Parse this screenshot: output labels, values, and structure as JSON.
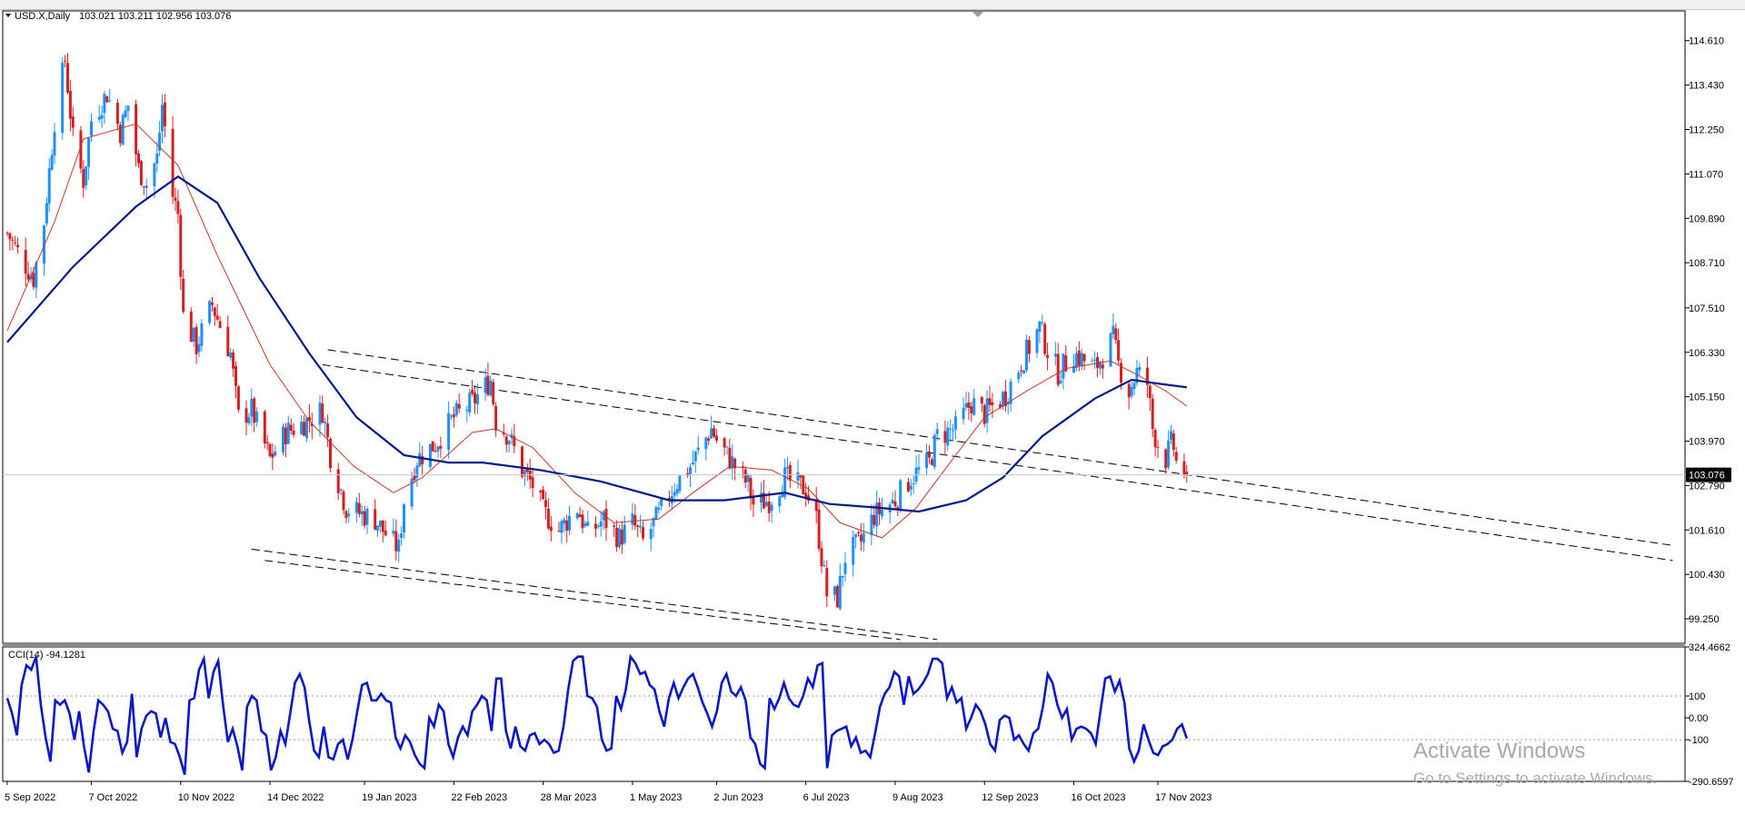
{
  "header": {
    "symbol_label": "USD.X,Daily",
    "ohlc": "103.021 103.211 102.956 103.076"
  },
  "watermark": {
    "title": "Activate Windows",
    "subtitle": "Go to Settings to activate Windows."
  },
  "colors": {
    "up_candle": "#1e90ff",
    "down_candle": "#d42020",
    "ma_fast": "#c0392b",
    "ma_slow": "#001a8c",
    "cci_line": "#0a18c8",
    "channel": "#000000",
    "price_tag_bg": "#000000"
  },
  "chart_data": [
    {
      "type": "candlestick",
      "panel": "price",
      "title": "USD.X,Daily",
      "current_price": 103.076,
      "current_price_label": "103.076",
      "ylim": [
        98.6,
        115.4
      ],
      "y_ticks": [
        "114.610",
        "113.430",
        "112.250",
        "111.070",
        "109.890",
        "108.710",
        "107.510",
        "106.330",
        "105.150",
        "103.970",
        "102.790",
        "101.610",
        "100.430",
        "99.250"
      ],
      "x_ticks": [
        {
          "label": "5 Sep 2022",
          "date": "2022-09-05"
        },
        {
          "label": "7 Oct 2022",
          "date": "2022-10-07"
        },
        {
          "label": "10 Nov 2022",
          "date": "2022-11-10"
        },
        {
          "label": "14 Dec 2022",
          "date": "2022-12-14"
        },
        {
          "label": "19 Jan 2023",
          "date": "2023-01-19"
        },
        {
          "label": "22 Feb 2023",
          "date": "2023-02-22"
        },
        {
          "label": "28 Mar 2023",
          "date": "2023-03-28"
        },
        {
          "label": "1 May 2023",
          "date": "2023-05-01"
        },
        {
          "label": "2 Jun 2023",
          "date": "2023-06-02"
        },
        {
          "label": "6 Jul 2023",
          "date": "2023-07-06"
        },
        {
          "label": "9 Aug 2023",
          "date": "2023-08-09"
        },
        {
          "label": "12 Sep 2023",
          "date": "2023-09-12"
        },
        {
          "label": "16 Oct 2023",
          "date": "2023-10-16"
        },
        {
          "label": "17 Nov 2023",
          "date": "2023-11-17"
        }
      ],
      "close_path": [
        [
          "2022-09-05",
          109.5
        ],
        [
          "2022-09-09",
          109.0
        ],
        [
          "2022-09-15",
          108.3
        ],
        [
          "2022-09-19",
          109.8
        ],
        [
          "2022-09-23",
          112.5
        ],
        [
          "2022-09-27",
          114.1
        ],
        [
          "2022-09-30",
          112.0
        ],
        [
          "2022-10-04",
          110.9
        ],
        [
          "2022-10-07",
          112.5
        ],
        [
          "2022-10-13",
          113.2
        ],
        [
          "2022-10-18",
          112.2
        ],
        [
          "2022-10-21",
          112.9
        ],
        [
          "2022-10-25",
          111.2
        ],
        [
          "2022-10-28",
          110.8
        ],
        [
          "2022-11-01",
          111.5
        ],
        [
          "2022-11-03",
          112.9
        ],
        [
          "2022-11-07",
          110.5
        ],
        [
          "2022-11-09",
          110.0
        ],
        [
          "2022-11-11",
          107.3
        ],
        [
          "2022-11-16",
          106.5
        ],
        [
          "2022-11-22",
          107.6
        ],
        [
          "2022-11-29",
          106.3
        ],
        [
          "2022-12-02",
          104.6
        ],
        [
          "2022-12-07",
          104.8
        ],
        [
          "2022-12-14",
          103.5
        ],
        [
          "2022-12-20",
          104.2
        ],
        [
          "2022-12-28",
          104.5
        ],
        [
          "2023-01-03",
          104.8
        ],
        [
          "2023-01-06",
          103.6
        ],
        [
          "2023-01-12",
          102.2
        ],
        [
          "2023-01-19",
          102.0
        ],
        [
          "2023-01-23",
          101.9
        ],
        [
          "2023-01-26",
          101.6
        ],
        [
          "2023-02-01",
          101.1
        ],
        [
          "2023-02-03",
          102.4
        ],
        [
          "2023-02-08",
          103.5
        ],
        [
          "2023-02-15",
          103.9
        ],
        [
          "2023-02-22",
          104.6
        ],
        [
          "2023-03-01",
          105.0
        ],
        [
          "2023-03-08",
          105.6
        ],
        [
          "2023-03-10",
          104.5
        ],
        [
          "2023-03-15",
          104.1
        ],
        [
          "2023-03-20",
          103.2
        ],
        [
          "2023-03-24",
          102.8
        ],
        [
          "2023-03-28",
          102.1
        ],
        [
          "2023-04-03",
          101.6
        ],
        [
          "2023-04-10",
          102.2
        ],
        [
          "2023-04-14",
          101.5
        ],
        [
          "2023-04-20",
          101.9
        ],
        [
          "2023-04-26",
          101.4
        ],
        [
          "2023-05-01",
          101.8
        ],
        [
          "2023-05-05",
          101.3
        ],
        [
          "2023-05-11",
          102.0
        ],
        [
          "2023-05-17",
          102.8
        ],
        [
          "2023-05-23",
          103.3
        ],
        [
          "2023-05-31",
          104.3
        ],
        [
          "2023-06-02",
          104.0
        ],
        [
          "2023-06-08",
          103.4
        ],
        [
          "2023-06-14",
          102.8
        ],
        [
          "2023-06-16",
          102.3
        ],
        [
          "2023-06-22",
          102.4
        ],
        [
          "2023-06-28",
          103.0
        ],
        [
          "2023-06-30",
          102.9
        ],
        [
          "2023-07-06",
          102.7
        ],
        [
          "2023-07-10",
          101.9
        ],
        [
          "2023-07-14",
          99.9
        ],
        [
          "2023-07-18",
          99.8
        ],
        [
          "2023-07-21",
          100.9
        ],
        [
          "2023-07-27",
          101.3
        ],
        [
          "2023-08-01",
          102.0
        ],
        [
          "2023-08-09",
          102.4
        ],
        [
          "2023-08-15",
          103.0
        ],
        [
          "2023-08-22",
          103.4
        ],
        [
          "2023-08-25",
          104.1
        ],
        [
          "2023-09-01",
          104.3
        ],
        [
          "2023-09-07",
          105.0
        ],
        [
          "2023-09-12",
          104.7
        ],
        [
          "2023-09-20",
          105.2
        ],
        [
          "2023-09-27",
          106.2
        ],
        [
          "2023-10-03",
          107.0
        ],
        [
          "2023-10-06",
          106.4
        ],
        [
          "2023-10-10",
          105.8
        ],
        [
          "2023-10-16",
          106.3
        ],
        [
          "2023-10-20",
          106.1
        ],
        [
          "2023-10-24",
          105.9
        ],
        [
          "2023-10-31",
          106.7
        ],
        [
          "2023-11-02",
          106.0
        ],
        [
          "2023-11-06",
          105.3
        ],
        [
          "2023-11-09",
          105.8
        ],
        [
          "2023-11-13",
          105.5
        ],
        [
          "2023-11-15",
          104.3
        ],
        [
          "2023-11-17",
          103.9
        ],
        [
          "2023-11-20",
          103.5
        ],
        [
          "2023-11-22",
          103.9
        ],
        [
          "2023-11-23",
          103.8
        ],
        [
          "2023-11-24",
          103.4
        ],
        [
          "2023-11-27",
          103.2
        ],
        [
          "2023-11-28",
          103.076
        ]
      ],
      "ma_fast": [
        [
          "2022-09-05",
          106.9
        ],
        [
          "2022-09-23",
          109.8
        ],
        [
          "2022-10-04",
          112.0
        ],
        [
          "2022-10-24",
          112.4
        ],
        [
          "2022-11-09",
          111.3
        ],
        [
          "2022-11-24",
          108.9
        ],
        [
          "2022-12-14",
          106.0
        ],
        [
          "2022-12-29",
          104.5
        ],
        [
          "2023-01-15",
          103.3
        ],
        [
          "2023-01-30",
          102.6
        ],
        [
          "2023-02-10",
          103.0
        ],
        [
          "2023-03-01",
          104.2
        ],
        [
          "2023-03-10",
          104.3
        ],
        [
          "2023-03-24",
          103.8
        ],
        [
          "2023-04-09",
          102.6
        ],
        [
          "2023-04-24",
          101.8
        ],
        [
          "2023-05-11",
          101.9
        ],
        [
          "2023-05-24",
          102.6
        ],
        [
          "2023-06-07",
          103.3
        ],
        [
          "2023-06-23",
          103.2
        ],
        [
          "2023-07-07",
          102.7
        ],
        [
          "2023-07-19",
          101.8
        ],
        [
          "2023-08-04",
          101.4
        ],
        [
          "2023-08-17",
          102.2
        ],
        [
          "2023-08-31",
          103.5
        ],
        [
          "2023-09-12",
          104.6
        ],
        [
          "2023-09-28",
          105.3
        ],
        [
          "2023-10-13",
          105.9
        ],
        [
          "2023-10-30",
          106.1
        ],
        [
          "2023-11-10",
          105.7
        ],
        [
          "2023-11-20",
          105.3
        ],
        [
          "2023-11-28",
          104.9
        ]
      ],
      "ma_slow": [
        [
          "2022-09-05",
          106.6
        ],
        [
          "2022-09-30",
          108.6
        ],
        [
          "2022-10-24",
          110.2
        ],
        [
          "2022-11-09",
          111.0
        ],
        [
          "2022-11-24",
          110.3
        ],
        [
          "2022-12-10",
          108.3
        ],
        [
          "2022-12-29",
          106.3
        ],
        [
          "2023-01-16",
          104.6
        ],
        [
          "2023-02-03",
          103.6
        ],
        [
          "2023-02-20",
          103.4
        ],
        [
          "2023-03-05",
          103.4
        ],
        [
          "2023-03-27",
          103.2
        ],
        [
          "2023-04-19",
          102.9
        ],
        [
          "2023-05-15",
          102.4
        ],
        [
          "2023-06-05",
          102.4
        ],
        [
          "2023-06-28",
          102.6
        ],
        [
          "2023-07-15",
          102.3
        ],
        [
          "2023-08-03",
          102.2
        ],
        [
          "2023-08-18",
          102.1
        ],
        [
          "2023-09-05",
          102.4
        ],
        [
          "2023-09-19",
          103.0
        ],
        [
          "2023-10-04",
          104.1
        ],
        [
          "2023-10-24",
          105.1
        ],
        [
          "2023-11-07",
          105.6
        ],
        [
          "2023-11-17",
          105.5
        ],
        [
          "2023-11-28",
          105.4
        ]
      ],
      "channel_lines": [
        {
          "from": [
            "2023-01-05",
            106.4
          ],
          "to": [
            "2024-05-31",
            101.2
          ]
        },
        {
          "from": [
            "2023-01-03",
            106.0
          ],
          "to": [
            "2024-05-31",
            100.8
          ]
        },
        {
          "from": [
            "2022-12-07",
            101.1
          ],
          "to": [
            "2023-08-25",
            98.7
          ]
        },
        {
          "from": [
            "2022-12-12",
            100.8
          ],
          "to": [
            "2023-08-11",
            98.7
          ]
        }
      ]
    },
    {
      "type": "line",
      "panel": "indicator",
      "title": "CCI(14) -94.1281",
      "ylim": [
        -290.6597,
        324.4662
      ],
      "y_ticks": [
        "324.4662",
        "100",
        "0.00",
        "-100",
        "-290.6597"
      ],
      "reference_levels": [
        100,
        -100
      ],
      "x_range": [
        "2022-09-05",
        "2023-11-28"
      ],
      "values": [
        90,
        20,
        -80,
        150,
        240,
        220,
        280,
        60,
        -90,
        -200,
        80,
        60,
        80,
        20,
        -100,
        30,
        -130,
        -250,
        -60,
        80,
        60,
        30,
        -50,
        -60,
        -160,
        -110,
        110,
        -180,
        -50,
        10,
        30,
        20,
        -90,
        0,
        -110,
        -120,
        -180,
        -260,
        80,
        90,
        220,
        270,
        90,
        210,
        260,
        60,
        -110,
        -50,
        -130,
        -240,
        50,
        100,
        80,
        -60,
        -80,
        -240,
        -180,
        -60,
        -120,
        20,
        160,
        200,
        140,
        -20,
        -150,
        -180,
        -40,
        -180,
        -190,
        -120,
        -100,
        -190,
        -100,
        30,
        150,
        160,
        80,
        80,
        110,
        80,
        70,
        -90,
        -140,
        -80,
        -110,
        -170,
        -210,
        -230,
        0,
        -40,
        60,
        30,
        -120,
        -180,
        -90,
        -40,
        -80,
        30,
        60,
        100,
        80,
        -60,
        180,
        180,
        -60,
        -140,
        -40,
        -130,
        -150,
        -80,
        -70,
        -120,
        -100,
        -120,
        -160,
        -150,
        -40,
        130,
        260,
        280,
        280,
        100,
        90,
        50,
        -100,
        -150,
        -140,
        100,
        40,
        130,
        280,
        250,
        200,
        210,
        150,
        130,
        30,
        -40,
        90,
        160,
        90,
        140,
        180,
        200,
        140,
        70,
        20,
        -40,
        30,
        160,
        200,
        120,
        100,
        140,
        80,
        -90,
        -120,
        -210,
        -230,
        90,
        40,
        90,
        160,
        90,
        60,
        50,
        100,
        180,
        140,
        240,
        250,
        -230,
        -80,
        -60,
        -50,
        -40,
        -130,
        -90,
        -160,
        -150,
        -180,
        -70,
        50,
        110,
        140,
        210,
        190,
        60,
        190,
        110,
        130,
        160,
        200,
        270,
        270,
        250,
        90,
        140,
        70,
        90,
        -50,
        0,
        60,
        30,
        -30,
        -120,
        -150,
        -10,
        10,
        0,
        -100,
        -80,
        -120,
        -150,
        -70,
        -50,
        50,
        200,
        160,
        60,
        0,
        40,
        -100,
        -50,
        -40,
        -50,
        -70,
        -120,
        30,
        180,
        190,
        120,
        170,
        70,
        -140,
        -200,
        -150,
        -30,
        -100,
        -160,
        -170,
        -130,
        -120,
        -100,
        -50,
        -30,
        -94.1281
      ]
    }
  ]
}
